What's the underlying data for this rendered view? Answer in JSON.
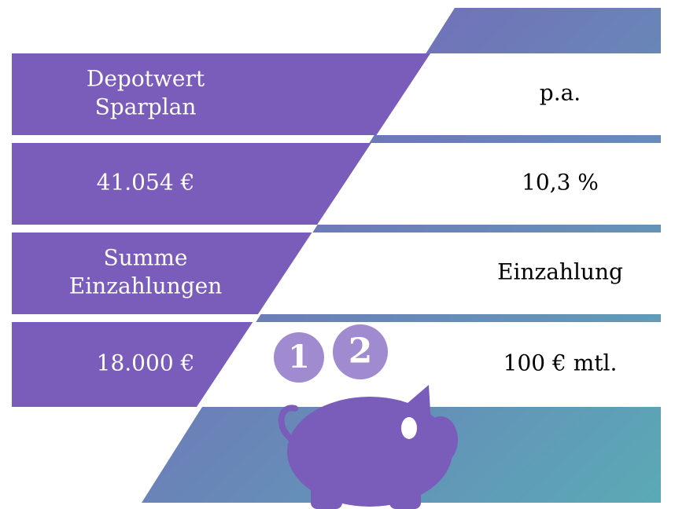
{
  "rows": [
    {
      "left": [
        "Depotwert",
        "Sparplan"
      ],
      "right": "p.a."
    },
    {
      "left": [
        "41.054 €"
      ],
      "right": "10,3 %"
    },
    {
      "left": [
        "Summe",
        "Einzahlungen"
      ],
      "right": "Einzahlung"
    },
    {
      "left": [
        "18.000 €"
      ],
      "right": "100 € mtl."
    }
  ],
  "coins": [
    "1",
    "2"
  ]
}
